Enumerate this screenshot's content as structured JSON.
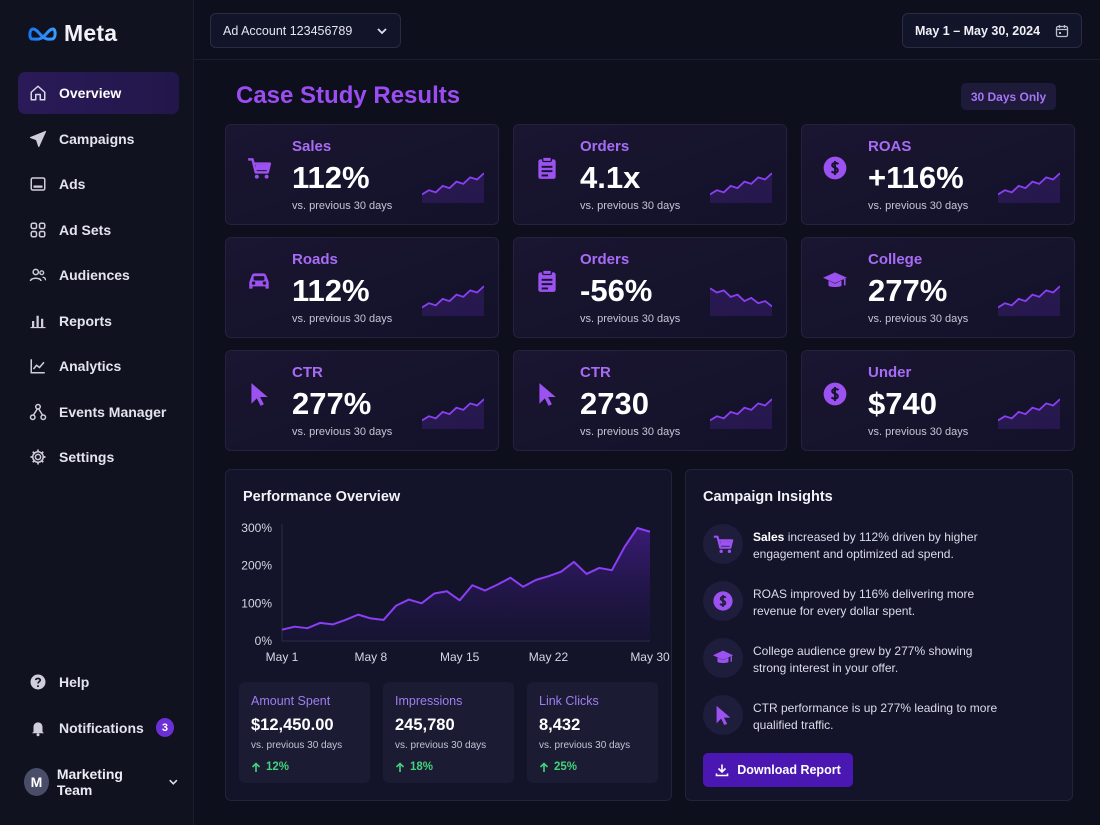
{
  "brand": {
    "name": "Meta"
  },
  "sidebar": {
    "items": [
      {
        "label": "Overview",
        "icon": "home-icon",
        "active": true
      },
      {
        "label": "Campaigns",
        "icon": "paper-plane-icon"
      },
      {
        "label": "Ads",
        "icon": "ad-screen-icon"
      },
      {
        "label": "Ad Sets",
        "icon": "grid-icon"
      },
      {
        "label": "Audiences",
        "icon": "users-icon"
      },
      {
        "label": "Reports",
        "icon": "bar-chart-icon"
      },
      {
        "label": "Analytics",
        "icon": "line-chart-icon"
      },
      {
        "label": "Events Manager",
        "icon": "nodes-icon"
      },
      {
        "label": "Settings",
        "icon": "gear-icon"
      }
    ],
    "bottom": [
      {
        "label": "Help",
        "icon": "help-icon"
      },
      {
        "label": "Notifications",
        "icon": "bell-icon",
        "badge": "3"
      }
    ],
    "user": {
      "initial": "M",
      "name": "Marketing Team"
    }
  },
  "topbar": {
    "account": "Ad Account 123456789",
    "date_range": "May 1 – May 30, 2024"
  },
  "page": {
    "title": "Case Study Results",
    "chip": "30 Days Only"
  },
  "colors": {
    "accent": "#9b4df2",
    "positive": "#42d37a",
    "background": "#0d0f1c"
  },
  "cards": [
    {
      "label": "Sales",
      "value": "112%",
      "sub": "vs. previous 30 days",
      "icon": "cart-icon",
      "trend": [
        8,
        12,
        10,
        16,
        14,
        20,
        18,
        24,
        22,
        28
      ]
    },
    {
      "label": "Orders",
      "value": "4.1x",
      "sub": "vs. previous 30 days",
      "icon": "clipboard-icon",
      "trend": [
        8,
        12,
        10,
        16,
        14,
        20,
        18,
        24,
        22,
        28
      ]
    },
    {
      "label": "ROAS",
      "value": "+116%",
      "sub": "vs. previous 30 days",
      "icon": "dollar-icon",
      "trend": [
        8,
        12,
        10,
        16,
        14,
        20,
        18,
        24,
        22,
        28
      ]
    },
    {
      "label": "Roads",
      "value": "112%",
      "sub": "vs. previous 30 days",
      "icon": "car-icon",
      "trend": [
        8,
        12,
        10,
        16,
        14,
        20,
        18,
        24,
        22,
        28
      ]
    },
    {
      "label": "Orders",
      "value": "-56%",
      "sub": "vs. previous 30 days",
      "icon": "clipboard-icon",
      "trend": [
        26,
        22,
        24,
        18,
        20,
        14,
        17,
        12,
        14,
        9
      ]
    },
    {
      "label": "College",
      "value": "277%",
      "sub": "vs. previous 30 days",
      "icon": "graduation-cap-icon",
      "trend": [
        8,
        12,
        10,
        16,
        14,
        20,
        18,
        24,
        22,
        28
      ]
    },
    {
      "label": "CTR",
      "value": "277%",
      "sub": "vs. previous 30 days",
      "icon": "cursor-icon",
      "trend": [
        8,
        12,
        10,
        16,
        14,
        20,
        18,
        24,
        22,
        28
      ]
    },
    {
      "label": "CTR",
      "value": "2730",
      "sub": "vs. previous 30 days",
      "icon": "cursor-icon",
      "trend": [
        8,
        12,
        10,
        16,
        14,
        20,
        18,
        24,
        22,
        28
      ]
    },
    {
      "label": "Under",
      "value": "$740",
      "sub": "vs. previous 30 days",
      "icon": "dollar-icon",
      "trend": [
        8,
        12,
        10,
        16,
        14,
        20,
        18,
        24,
        22,
        28
      ]
    }
  ],
  "performance": {
    "title": "Performance Overview",
    "stats": [
      {
        "label": "Amount Spent",
        "value": "$12,450.00",
        "sub": "vs. previous 30 days",
        "change": "12%"
      },
      {
        "label": "Impressions",
        "value": "245,780",
        "sub": "vs. previous 30 days",
        "change": "18%"
      },
      {
        "label": "Link Clicks",
        "value": "8,432",
        "sub": "vs. previous 30 days",
        "change": "25%"
      }
    ]
  },
  "chart_data": {
    "type": "area",
    "title": "Performance Overview",
    "xlabel": "",
    "ylabel": "",
    "ylim": [
      0,
      300
    ],
    "yticks": [
      0,
      100,
      200,
      300
    ],
    "ytick_labels": [
      "0%",
      "100%",
      "200%",
      "300%"
    ],
    "xtick_labels": [
      "May 1",
      "May 8",
      "May 15",
      "May 22",
      "May 30"
    ],
    "xtick_days": [
      1,
      8,
      15,
      22,
      30
    ],
    "x": [
      1,
      2,
      3,
      4,
      5,
      6,
      7,
      8,
      9,
      10,
      11,
      12,
      13,
      14,
      15,
      16,
      17,
      18,
      19,
      20,
      21,
      22,
      23,
      24,
      25,
      26,
      27,
      28,
      29,
      30
    ],
    "series": [
      {
        "values": [
          30,
          38,
          34,
          48,
          44,
          56,
          70,
          60,
          56,
          94,
          110,
          100,
          126,
          132,
          108,
          148,
          134,
          150,
          168,
          144,
          162,
          172,
          184,
          210,
          178,
          194,
          188,
          250,
          300,
          290
        ]
      }
    ],
    "grid": false,
    "legend": "none"
  },
  "insights": {
    "title": "Campaign Insights",
    "items": [
      {
        "icon": "cart-icon",
        "bold": "Sales",
        "text": " increased by 112% driven by higher engagement and optimized ad spend."
      },
      {
        "icon": "dollar-icon",
        "bold": "",
        "text": "ROAS improved by 116% delivering more revenue for every dollar spent."
      },
      {
        "icon": "graduation-cap-icon",
        "bold": "",
        "text": "College audience grew by 277% showing strong interest in your offer."
      },
      {
        "icon": "cursor-icon",
        "bold": "",
        "text": "CTR performance is up 277% leading to more qualified traffic."
      }
    ],
    "button": "Download Report"
  }
}
